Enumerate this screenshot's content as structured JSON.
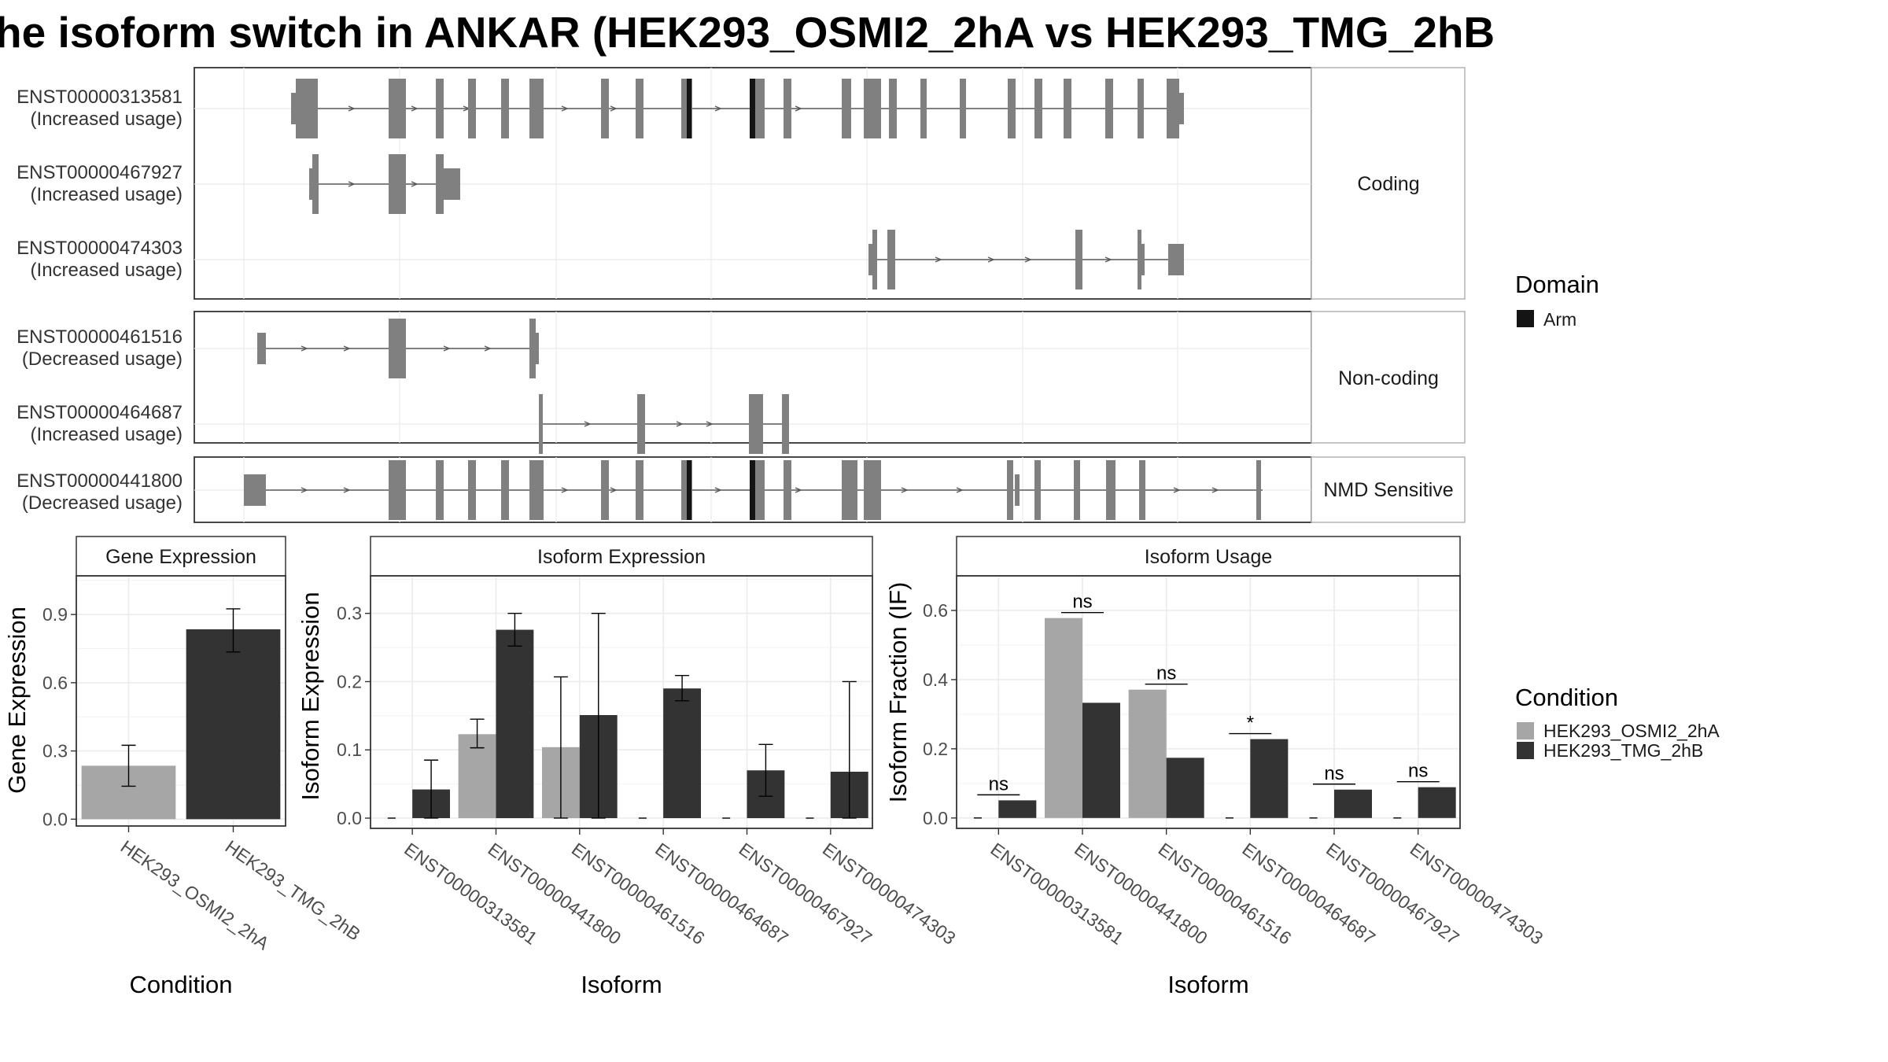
{
  "title": "he isoform switch in ANKAR (HEK293_OSMI2_2hA vs HEK293_TMG_2hB",
  "colors": {
    "exon": "#808080",
    "domain_arm": "#141414",
    "condition_a": "#a6a6a6",
    "condition_b": "#333333"
  },
  "chart_data": [
    {
      "type": "gene-structure",
      "facets": [
        {
          "name": "Coding",
          "transcripts": [
            {
              "id": "ENST00000313581",
              "usage": "(Increased usage)"
            },
            {
              "id": "ENST00000467927",
              "usage": "(Increased usage)"
            },
            {
              "id": "ENST00000474303",
              "usage": "(Increased usage)"
            }
          ]
        },
        {
          "name": "Non-coding",
          "transcripts": [
            {
              "id": "ENST00000461516",
              "usage": "(Decreased usage)"
            },
            {
              "id": "ENST00000464687",
              "usage": "(Increased usage)"
            }
          ]
        },
        {
          "name": "NMD Sensitive",
          "transcripts": [
            {
              "id": "ENST00000441800",
              "usage": "(Decreased usage)"
            }
          ]
        }
      ],
      "legend": {
        "title": "Domain",
        "entries": [
          "Arm"
        ]
      }
    },
    {
      "type": "bar",
      "title": "Gene Expression",
      "xlabel": "Condition",
      "ylabel": "Gene Expression",
      "categories": [
        "HEK293_OSMI2_2hA",
        "HEK293_TMG_2hB"
      ],
      "values": [
        0.235,
        0.835
      ],
      "error_low": [
        0.145,
        0.735
      ],
      "error_high": [
        0.325,
        0.925
      ],
      "ylim": [
        -0.03,
        1.07
      ],
      "yticks": [
        0.0,
        0.3,
        0.6,
        0.9
      ],
      "ytick_labels": [
        "0.0",
        "0.3",
        "0.6",
        "0.9"
      ]
    },
    {
      "type": "bar",
      "title": "Isoform Expression",
      "xlabel": "Isoform",
      "ylabel": "Isoform Expression",
      "categories": [
        "ENST00000313581",
        "ENST00000441800",
        "ENST00000461516",
        "ENST00000464687",
        "ENST00000467927",
        "ENST00000474303"
      ],
      "series": [
        {
          "values": [
            0.0,
            0.123,
            0.104,
            0.0,
            0.0,
            0.0
          ],
          "err_low": [
            null,
            0.103,
            0.0,
            null,
            null,
            null
          ],
          "err_high": [
            null,
            0.145,
            0.207,
            null,
            null,
            null
          ]
        },
        {
          "values": [
            0.042,
            0.276,
            0.151,
            0.19,
            0.07,
            0.068
          ],
          "err_low": [
            0.0,
            0.252,
            0.0,
            0.172,
            0.032,
            0.0
          ],
          "err_high": [
            0.085,
            0.3,
            0.3,
            0.209,
            0.108,
            0.2
          ]
        }
      ],
      "ylim": [
        -0.015,
        0.355
      ],
      "yticks": [
        0.0,
        0.1,
        0.2,
        0.3
      ],
      "ytick_labels": [
        "0.0",
        "0.1",
        "0.2",
        "0.3"
      ]
    },
    {
      "type": "bar",
      "title": "Isoform Usage",
      "xlabel": "Isoform",
      "ylabel": "Isoform Fraction (IF)",
      "categories": [
        "ENST00000313581",
        "ENST00000441800",
        "ENST00000461516",
        "ENST00000464687",
        "ENST00000467927",
        "ENST00000474303"
      ],
      "series": [
        {
          "values": [
            0.0,
            0.578,
            0.371,
            0.0,
            0.0,
            0.0
          ]
        },
        {
          "values": [
            0.051,
            0.333,
            0.174,
            0.228,
            0.082,
            0.089
          ]
        }
      ],
      "significance": [
        "ns",
        "ns",
        "ns",
        "*",
        "ns",
        "ns"
      ],
      "ylim": [
        -0.03,
        0.7
      ],
      "yticks": [
        0.0,
        0.2,
        0.4,
        0.6
      ],
      "ytick_labels": [
        "0.0",
        "0.2",
        "0.4",
        "0.6"
      ]
    }
  ],
  "condition_legend": {
    "title": "Condition",
    "entries": [
      "HEK293_OSMI2_2hA",
      "HEK293_TMG_2hB"
    ]
  }
}
